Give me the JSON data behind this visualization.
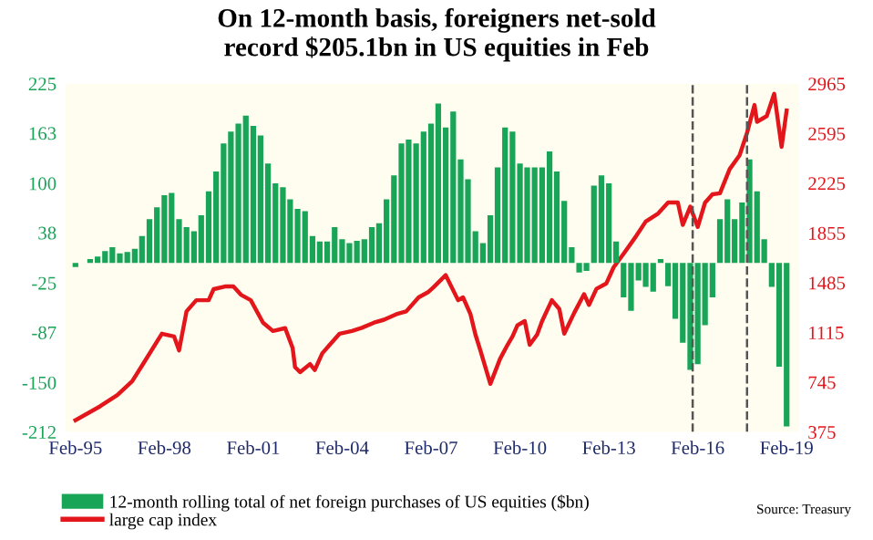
{
  "chart_data": {
    "type": "bar",
    "title": "On 12-month basis, foreigners net-sold\nrecord $205.1bn in US equities in Feb",
    "annotations": [
      "Source: Treasury"
    ],
    "xlim": [
      "1994-10",
      "2019-07"
    ],
    "xticks": [
      {
        "value": "1995-02",
        "label": "Feb-95"
      },
      {
        "value": "1998-02",
        "label": "Feb-98"
      },
      {
        "value": "2001-02",
        "label": "Feb-01"
      },
      {
        "value": "2004-02",
        "label": "Feb-04"
      },
      {
        "value": "2007-02",
        "label": "Feb-07"
      },
      {
        "value": "2010-02",
        "label": "Feb-10"
      },
      {
        "value": "2013-02",
        "label": "Feb-13"
      },
      {
        "value": "2016-02",
        "label": "Feb-16"
      },
      {
        "value": "2019-02",
        "label": "Feb-19"
      }
    ],
    "ylim": [
      -212,
      225
    ],
    "yticks": [
      -212,
      -150,
      -87,
      -25,
      38,
      100,
      163,
      225
    ],
    "y2lim": [
      375,
      2965
    ],
    "y2ticks": [
      375,
      745,
      1115,
      1485,
      1855,
      2225,
      2595,
      2965
    ],
    "grid": false,
    "legend": "bottom left",
    "ref_lines": [
      {
        "axis": "x",
        "value": "2015-12",
        "color": "#555555",
        "line_style": "dashed"
      },
      {
        "axis": "x",
        "value": "2017-10",
        "color": "#555555",
        "line_style": "dashed"
      }
    ],
    "series": [
      {
        "name": "12-month rolling total of net foreign purchases of US equities ($bn)",
        "color": "#18a558",
        "x": [
          "1995-02",
          "1995-05",
          "1995-08",
          "1995-11",
          "1996-02",
          "1996-05",
          "1996-08",
          "1996-11",
          "1997-02",
          "1997-05",
          "1997-08",
          "1997-11",
          "1998-02",
          "1998-05",
          "1998-08",
          "1998-11",
          "1999-02",
          "1999-05",
          "1999-08",
          "1999-11",
          "2000-02",
          "2000-05",
          "2000-08",
          "2000-11",
          "2001-02",
          "2001-05",
          "2001-08",
          "2001-11",
          "2002-02",
          "2002-05",
          "2002-08",
          "2002-11",
          "2003-02",
          "2003-05",
          "2003-08",
          "2003-11",
          "2004-02",
          "2004-05",
          "2004-08",
          "2004-11",
          "2005-02",
          "2005-05",
          "2005-08",
          "2005-11",
          "2006-02",
          "2006-05",
          "2006-08",
          "2006-11",
          "2007-02",
          "2007-05",
          "2007-08",
          "2007-11",
          "2008-02",
          "2008-05",
          "2008-08",
          "2008-11",
          "2009-02",
          "2009-05",
          "2009-08",
          "2009-11",
          "2010-02",
          "2010-05",
          "2010-08",
          "2010-11",
          "2011-02",
          "2011-05",
          "2011-08",
          "2011-11",
          "2012-02",
          "2012-05",
          "2012-08",
          "2012-11",
          "2013-02",
          "2013-05",
          "2013-08",
          "2013-11",
          "2014-02",
          "2014-05",
          "2014-08",
          "2014-11",
          "2015-02",
          "2015-05",
          "2015-08",
          "2015-11",
          "2016-02",
          "2016-05",
          "2016-08",
          "2016-11",
          "2017-02",
          "2017-05",
          "2017-08",
          "2017-11",
          "2018-02",
          "2018-05",
          "2018-08",
          "2018-11",
          "2019-02"
        ],
        "values": [
          -5,
          0,
          5,
          8,
          15,
          20,
          12,
          14,
          18,
          34,
          55,
          70,
          85,
          88,
          55,
          45,
          40,
          60,
          90,
          115,
          150,
          165,
          175,
          185,
          172,
          160,
          125,
          100,
          95,
          80,
          68,
          65,
          34,
          27,
          27,
          45,
          30,
          25,
          28,
          30,
          45,
          50,
          80,
          110,
          150,
          155,
          150,
          165,
          175,
          200,
          170,
          190,
          130,
          105,
          40,
          25,
          60,
          120,
          170,
          165,
          125,
          120,
          120,
          120,
          140,
          115,
          78,
          20,
          -12,
          -10,
          97,
          110,
          100,
          27,
          -43,
          -60,
          -22,
          -30,
          -36,
          5,
          -29,
          -70,
          -100,
          -134,
          -127,
          -78,
          -43,
          55,
          80,
          55,
          76,
          130,
          90,
          30,
          -30,
          -130,
          -205.1
        ]
      },
      {
        "name": "large cap index",
        "type": "line",
        "axis": "y2",
        "color": "#e3161b",
        "x": [
          "1995-02",
          "1995-12",
          "1996-07",
          "1997-01",
          "1997-06",
          "1998-01",
          "1998-06",
          "1998-08",
          "1998-11",
          "1999-03",
          "1999-08",
          "1999-10",
          "2000-03",
          "2000-06",
          "2000-09",
          "2001-01",
          "2001-06",
          "2001-10",
          "2002-03",
          "2002-06",
          "2002-07",
          "2002-09",
          "2003-01",
          "2003-03",
          "2003-06",
          "2003-09",
          "2004-01",
          "2004-06",
          "2004-10",
          "2005-03",
          "2005-07",
          "2005-12",
          "2006-04",
          "2006-09",
          "2007-01",
          "2007-03",
          "2007-08",
          "2008-01",
          "2008-03",
          "2008-06",
          "2008-08",
          "2008-10",
          "2009-02",
          "2009-06",
          "2009-09",
          "2009-11",
          "2010-01",
          "2010-04",
          "2010-06",
          "2010-09",
          "2010-11",
          "2011-03",
          "2011-06",
          "2011-08",
          "2011-12",
          "2012-04",
          "2012-06",
          "2012-09",
          "2013-01",
          "2013-04",
          "2013-08",
          "2014-01",
          "2014-05",
          "2014-10",
          "2015-02",
          "2015-06",
          "2015-08",
          "2015-11",
          "2016-02",
          "2016-05",
          "2016-08",
          "2016-11",
          "2017-03",
          "2017-07",
          "2017-10",
          "2018-01",
          "2018-02",
          "2018-06",
          "2018-09",
          "2018-12",
          "2019-02"
        ],
        "values": [
          463,
          566,
          649,
          753,
          898,
          1106,
          1085,
          982,
          1272,
          1355,
          1355,
          1437,
          1458,
          1458,
          1396,
          1355,
          1188,
          1126,
          1147,
          1000,
          857,
          820,
          880,
          836,
          960,
          1023,
          1106,
          1126,
          1150,
          1188,
          1210,
          1251,
          1272,
          1376,
          1417,
          1450,
          1541,
          1355,
          1376,
          1251,
          1100,
          982,
          733,
          919,
          1023,
          1085,
          1168,
          1200,
          1023,
          1100,
          1200,
          1355,
          1290,
          1106,
          1260,
          1400,
          1320,
          1440,
          1480,
          1600,
          1700,
          1830,
          1940,
          2000,
          2081,
          2081,
          1915,
          2050,
          1900,
          2080,
          2143,
          2150,
          2330,
          2433,
          2599,
          2807,
          2682,
          2724,
          2890,
          2495,
          2765
        ]
      }
    ]
  }
}
